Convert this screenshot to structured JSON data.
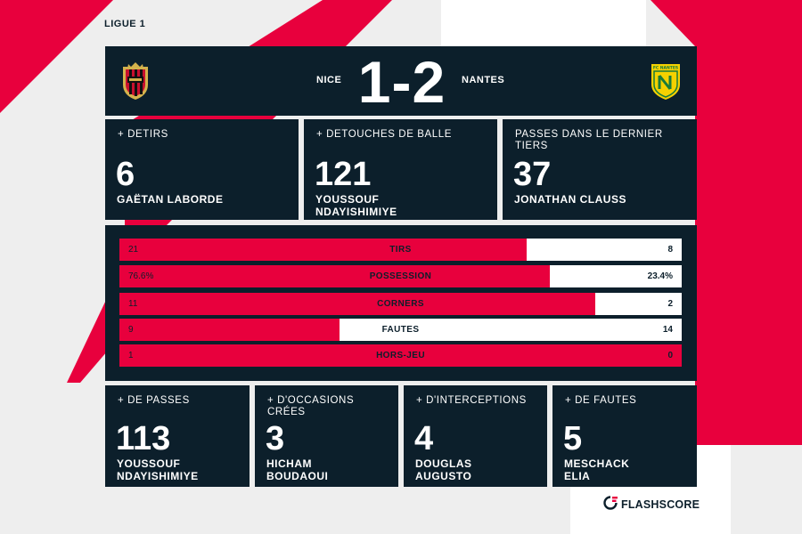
{
  "league": "LIGUE 1",
  "match": {
    "home_team": "NICE",
    "away_team": "NANTES",
    "score": "1-2",
    "home_logo_icon": "ogc-nice-crest-icon",
    "away_logo_icon": "fc-nantes-crest-icon"
  },
  "top_stats": [
    {
      "label": "+ DETIRS",
      "value": "6",
      "player": "GAËTAN LABORDE"
    },
    {
      "label": "+ DETOUCHES DE BALLE",
      "value": "121",
      "player": "YOUSSOUF NDAYISHIMIYE"
    },
    {
      "label": "PASSES DANS LE DERNIER TIERS",
      "value": "37",
      "player": "JONATHAN CLAUSS"
    }
  ],
  "comparison": [
    {
      "label": "TIRS",
      "home": "21",
      "away": "8",
      "home_share": 0.724
    },
    {
      "label": "POSSESSION",
      "home": "76.6%",
      "away": "23.4%",
      "home_share": 0.766
    },
    {
      "label": "CORNERS",
      "home": "11",
      "away": "2",
      "home_share": 0.846
    },
    {
      "label": "FAUTES",
      "home": "9",
      "away": "14",
      "home_share": 0.391
    },
    {
      "label": "HORS-JEU",
      "home": "1",
      "away": "0",
      "home_share": 1.0
    }
  ],
  "bottom_stats": [
    {
      "label": "+ DE PASSES",
      "value": "113",
      "player": "YOUSSOUF NDAYISHIMIYE"
    },
    {
      "label": "+ D'OCCASIONS CRÉES",
      "value": "3",
      "player": "HICHAM BOUDAOUI"
    },
    {
      "label": "+ D'INTERCEPTIONS",
      "value": "4",
      "player": "DOUGLAS AUGUSTO"
    },
    {
      "label": "+ DE FAUTES",
      "value": "5",
      "player": "MESCHACK ELIA"
    }
  ],
  "brand": {
    "name": "FLASHSCORE",
    "logo_icon": "flashscore-logo-icon"
  },
  "colors": {
    "accent": "#e8003d",
    "panel": "#0c1f2b",
    "background": "#eeeeee",
    "text_light": "#ffffff"
  }
}
